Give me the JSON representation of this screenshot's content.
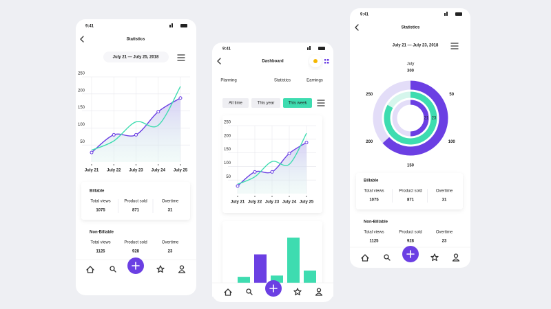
{
  "phones": [
    {
      "status_time": "9:41",
      "title": "Statistics",
      "date_range": "July 21 — July 25, 2018",
      "chart": {
        "type": "line",
        "x": [
          "July 21",
          "July 22",
          "July 23",
          "July 24",
          "July 25"
        ],
        "ylim": [
          0,
          250
        ],
        "yticks": [
          50,
          100,
          150,
          200,
          250
        ],
        "grid": true,
        "series": [
          {
            "color": "#6b3fe3",
            "values": [
              28,
              80,
              80,
              148,
              188
            ]
          },
          {
            "color": "#3edcb0",
            "values": [
              35,
              62,
              118,
              108,
              222
            ]
          }
        ]
      },
      "cards": [
        {
          "heading": "Billable",
          "stats": [
            {
              "label": "Total views",
              "value": "1075"
            },
            {
              "label": "Product sold",
              "value": "871"
            },
            {
              "label": "Overtime",
              "value": "31"
            }
          ]
        },
        {
          "heading": "Non-Billable",
          "stats": [
            {
              "label": "Total views",
              "value": "1125"
            },
            {
              "label": "Product sold",
              "value": "928"
            },
            {
              "label": "Overtime",
              "value": "23"
            }
          ]
        }
      ]
    },
    {
      "status_time": "9:41",
      "title": "Dashboard",
      "tabs": [
        "Planning",
        "Statistics",
        "Earnings"
      ],
      "filters": [
        "All time",
        "This year",
        "This week"
      ],
      "chart": {
        "type": "line",
        "x": [
          "July 21",
          "July 22",
          "July 23",
          "July 24",
          "July 25"
        ],
        "ylim": [
          0,
          250
        ],
        "yticks": [
          50,
          100,
          150,
          200,
          250
        ],
        "grid": true,
        "series": [
          {
            "color": "#6b3fe3",
            "values": [
              28,
              80,
              80,
              148,
              188
            ]
          },
          {
            "color": "#3edcb0",
            "values": [
              35,
              62,
              118,
              108,
              222
            ]
          }
        ]
      },
      "bars": {
        "type": "bar",
        "values": [
          12,
          48,
          14,
          75,
          22
        ],
        "colors": [
          "#3edcb0",
          "#6b3fe3",
          "#3edcb0",
          "#3edcb0",
          "#3edcb0"
        ]
      }
    },
    {
      "status_time": "9:41",
      "title": "Statistics",
      "date_range": "July 21 — July 23, 2018",
      "month": "July",
      "chart": {
        "type": "radial",
        "ylim": [
          0,
          300
        ],
        "yticks": [
          50,
          100,
          150,
          200,
          250,
          300
        ],
        "series": [
          {
            "color": "#6b3fe3",
            "track_color": "#e3ddf8",
            "value": 190
          },
          {
            "color": "#3edcb0",
            "track_color": "#d5f6ec",
            "value": 250,
            "label": "23"
          },
          {
            "color": "#6b3fe3",
            "track_color": "#e3ddf8",
            "value": 150,
            "label": "21"
          }
        ]
      },
      "cards": [
        {
          "heading": "Billable",
          "stats": [
            {
              "label": "Total views",
              "value": "1075"
            },
            {
              "label": "Product sold",
              "value": "871"
            },
            {
              "label": "Overtime",
              "value": "31"
            }
          ]
        },
        {
          "heading": "Non-Billable",
          "stats": [
            {
              "label": "Total views",
              "value": "1125"
            },
            {
              "label": "Product sold",
              "value": "928"
            },
            {
              "label": "Overtime",
              "value": "23"
            }
          ]
        }
      ]
    }
  ]
}
